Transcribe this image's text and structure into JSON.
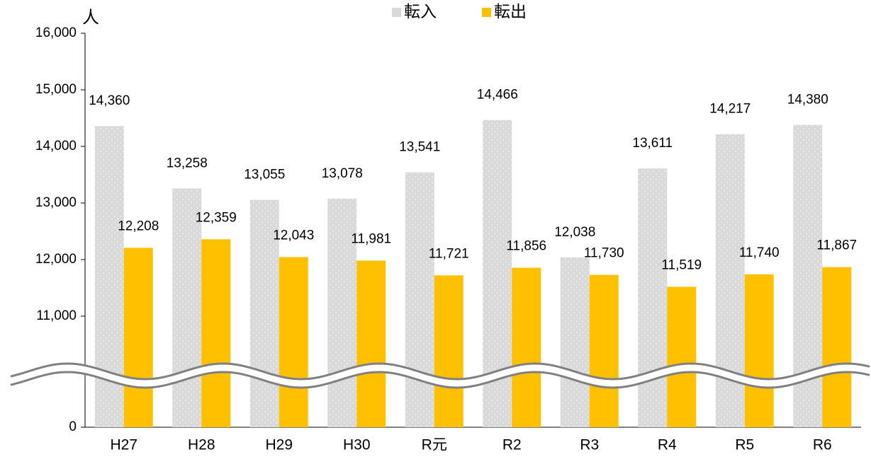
{
  "chart_data": {
    "type": "bar",
    "y_label": "人",
    "categories": [
      "H27",
      "H28",
      "H29",
      "H30",
      "R元",
      "R2",
      "R3",
      "R4",
      "R5",
      "R6"
    ],
    "series": [
      {
        "name": "転入",
        "color": "#d9d9d9",
        "values": [
          14360,
          13258,
          13055,
          13078,
          13541,
          14466,
          12038,
          13611,
          14217,
          14380
        ],
        "value_labels": [
          "14,360",
          "13,258",
          "13,055",
          "13,078",
          "13,541",
          "14,466",
          "12,038",
          "13,611",
          "14,217",
          "14,380"
        ]
      },
      {
        "name": "転出",
        "color": "#ffc000",
        "values": [
          12208,
          12359,
          12043,
          11981,
          11721,
          11856,
          11730,
          11519,
          11740,
          11867
        ],
        "value_labels": [
          "12,208",
          "12,359",
          "12,043",
          "11,981",
          "11,721",
          "11,856",
          "11,730",
          "11,519",
          "11,740",
          "11,867"
        ]
      }
    ],
    "ylim": [
      0,
      16000
    ],
    "y_break": [
      0,
      10000
    ],
    "yticks": [
      0,
      {
        "value": 11000,
        "label": "11,000"
      },
      {
        "value": 12000,
        "label": "12,000"
      },
      {
        "value": 13000,
        "label": "13,000"
      },
      {
        "value": 14000,
        "label": "14,000"
      },
      {
        "value": 15000,
        "label": "15,000"
      },
      {
        "value": 16000,
        "label": "16,000"
      }
    ],
    "legend": "top"
  }
}
